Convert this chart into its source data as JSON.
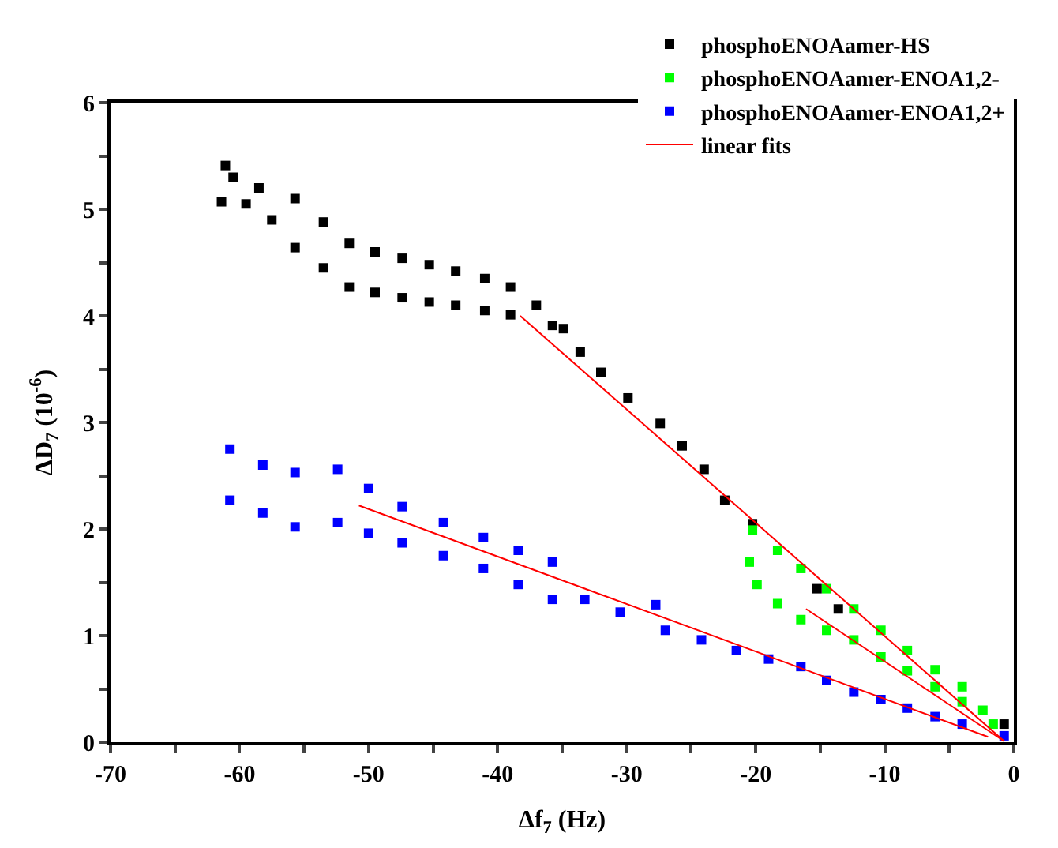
{
  "chart_data": {
    "type": "scatter",
    "xlabel": "Δf$_{7}$ (Hz)",
    "ylabel": "ΔD$_{7}$ (10$^{-6}$)",
    "xlim": [
      -70,
      0
    ],
    "ylim": [
      0,
      6
    ],
    "xticks": [
      -70,
      {
        "value": -65,
        "label": null
      },
      -60,
      {
        "value": -55,
        "label": null
      },
      -50,
      {
        "value": -45,
        "label": null
      },
      -40,
      {
        "value": -35,
        "label": null
      },
      -30,
      {
        "value": -25,
        "label": null
      },
      -20,
      {
        "value": -15,
        "label": null
      },
      -10,
      {
        "value": -5,
        "label": null
      },
      0
    ],
    "yticks": [
      0,
      {
        "value": 0.5,
        "label": null
      },
      1,
      {
        "value": 1.5,
        "label": null
      },
      2,
      {
        "value": 2.5,
        "label": null
      },
      3,
      {
        "value": 3.5,
        "label": null
      },
      4,
      {
        "value": 4.5,
        "label": null
      },
      5,
      {
        "value": 5.5,
        "label": null
      },
      6
    ],
    "legend": "top right",
    "series": [
      {
        "name": "phosphoENOAamer-HS",
        "color": "#000000",
        "marker": "square",
        "x": [
          -61.1,
          -61.4,
          -60.5,
          -59.5,
          -58.5,
          -57.5,
          -55.7,
          -55.7,
          -53.5,
          -53.5,
          -51.5,
          -51.5,
          -49.5,
          -49.5,
          -47.4,
          -47.4,
          -45.3,
          -45.3,
          -43.25,
          -43.25,
          -41,
          -41,
          -39,
          -39,
          -37,
          -35.75,
          -34.9,
          -33.6,
          -32,
          -29.9,
          -27.4,
          -25.7,
          -24,
          -22.4,
          -20.25,
          -15.25,
          -13.6,
          -0.75
        ],
        "values": [
          5.41,
          5.07,
          5.3,
          5.05,
          5.2,
          4.9,
          5.1,
          4.64,
          4.88,
          4.45,
          4.68,
          4.27,
          4.6,
          4.22,
          4.54,
          4.17,
          4.48,
          4.13,
          4.42,
          4.1,
          4.35,
          4.05,
          4.27,
          4.01,
          4.1,
          3.91,
          3.88,
          3.66,
          3.47,
          3.23,
          2.99,
          2.78,
          2.56,
          2.27,
          2.05,
          1.44,
          1.25,
          0.17
        ]
      },
      {
        "name": "phosphoENOAamer-ENOA1,2-",
        "color": "#00ff00",
        "marker": "square",
        "x": [
          -20.25,
          -20.5,
          -19.9,
          -18.3,
          -18.3,
          -16.5,
          -16.5,
          -14.5,
          -14.5,
          -12.4,
          -12.4,
          -10.3,
          -10.3,
          -8.25,
          -8.25,
          -6.1,
          -6.1,
          -4,
          -4,
          -2.4,
          -1.6
        ],
        "values": [
          1.99,
          1.69,
          1.48,
          1.8,
          1.3,
          1.63,
          1.15,
          1.44,
          1.05,
          1.25,
          0.96,
          1.05,
          0.8,
          0.86,
          0.67,
          0.68,
          0.52,
          0.52,
          0.38,
          0.3,
          0.17
        ]
      },
      {
        "name": "phosphoENOAamer-ENOA1,2+",
        "color": "#0000ff",
        "marker": "square",
        "x": [
          -60.75,
          -60.75,
          -58.2,
          -58.2,
          -55.7,
          -55.7,
          -52.4,
          -52.4,
          -50,
          -50,
          -47.4,
          -47.4,
          -44.2,
          -44.2,
          -41.1,
          -41.1,
          -38.4,
          -38.4,
          -35.75,
          -35.75,
          -33.25,
          -30.5,
          -27.75,
          -27,
          -24.2,
          -21.5,
          -19,
          -16.5,
          -14.5,
          -12.4,
          -10.3,
          -8.25,
          -6.1,
          -4,
          -0.75
        ],
        "values": [
          2.75,
          2.27,
          2.6,
          2.15,
          2.53,
          2.02,
          2.56,
          2.06,
          2.38,
          1.96,
          2.21,
          1.87,
          2.06,
          1.75,
          1.92,
          1.63,
          1.8,
          1.48,
          1.69,
          1.34,
          1.34,
          1.22,
          1.29,
          1.05,
          0.96,
          0.86,
          0.78,
          0.71,
          0.58,
          0.47,
          0.4,
          0.32,
          0.24,
          0.17,
          0.06
        ]
      },
      {
        "name": "linear fits",
        "color": "#ff0000",
        "type": "line",
        "x": [
          -38.25,
          -0.75
        ],
        "values": [
          4.0,
          0.01
        ]
      },
      {
        "color": "#ff0000",
        "type": "line",
        "x": [
          -16.1,
          -0.75
        ],
        "values": [
          1.25,
          0.01
        ]
      },
      {
        "color": "#ff0000",
        "type": "line",
        "x": [
          -50.75,
          -2
        ],
        "values": [
          2.22,
          0.05
        ]
      }
    ]
  }
}
